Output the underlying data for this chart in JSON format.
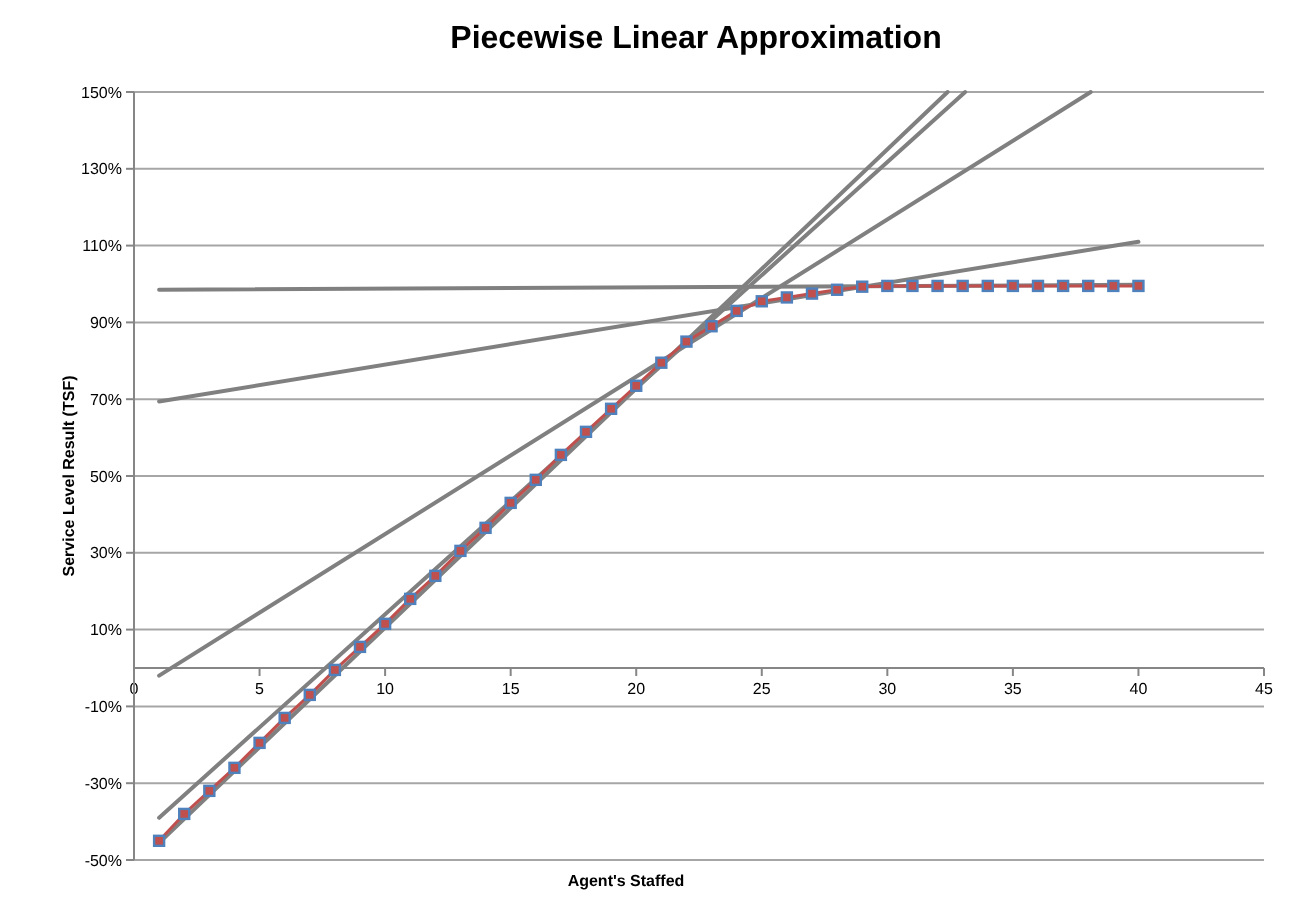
{
  "chart_data": {
    "type": "line",
    "title": "Piecewise Linear Approximation",
    "xlabel": "Agent's Staffed",
    "ylabel": "Service Level Result (TSF)",
    "xlim": [
      0,
      45
    ],
    "xticks": [
      0,
      5,
      10,
      15,
      20,
      25,
      30,
      35,
      40,
      45
    ],
    "ylim": [
      -50,
      150
    ],
    "yticks": [
      {
        "value": -50,
        "label": "-50%"
      },
      {
        "value": -30,
        "label": "-30%"
      },
      {
        "value": -10,
        "label": "-10%"
      },
      {
        "value": 10,
        "label": "10%"
      },
      {
        "value": 30,
        "label": "30%"
      },
      {
        "value": 50,
        "label": "50%"
      },
      {
        "value": 70,
        "label": "70%"
      },
      {
        "value": 90,
        "label": "90%"
      },
      {
        "value": 110,
        "label": "110%"
      },
      {
        "value": 130,
        "label": "130%"
      },
      {
        "value": 150,
        "label": "150%"
      }
    ],
    "grid": "y",
    "series": [
      {
        "color": "#808080",
        "x": [
          1,
          40
        ],
        "values": [
          98.5,
          99.8
        ]
      },
      {
        "color": "#808080",
        "x": [
          1,
          40
        ],
        "values": [
          69.4,
          111
        ]
      },
      {
        "color": "#808080",
        "x": [
          1,
          38.1
        ],
        "values": [
          -2,
          150
        ]
      },
      {
        "color": "#808080",
        "x": [
          1,
          33.1
        ],
        "values": [
          -39,
          150
        ]
      },
      {
        "color": "#808080",
        "x": [
          1,
          32.4
        ],
        "values": [
          -45.5,
          150
        ]
      },
      {
        "color": "#c0504d",
        "marker": "square",
        "x": [
          1,
          2,
          3,
          4,
          5,
          6,
          7,
          8,
          9,
          10,
          11,
          12,
          13,
          14,
          15,
          16,
          17,
          18,
          19,
          20,
          21,
          22,
          23,
          24,
          25,
          26,
          27,
          28,
          29,
          30,
          31,
          32,
          33,
          34,
          35,
          36,
          37,
          38,
          39,
          40
        ],
        "values": [
          -45,
          -38,
          -32,
          -26,
          -19.5,
          -13,
          -7,
          -0.5,
          5.5,
          11.5,
          18,
          24,
          30.5,
          36.5,
          43,
          49,
          55.5,
          61.5,
          67.5,
          73.5,
          79.5,
          85,
          89,
          93,
          95.5,
          96.5,
          97.5,
          98.5,
          99.3,
          99.5,
          99.5,
          99.5,
          99.5,
          99.5,
          99.5,
          99.5,
          99.5,
          99.5,
          99.5,
          99.5
        ]
      }
    ]
  }
}
